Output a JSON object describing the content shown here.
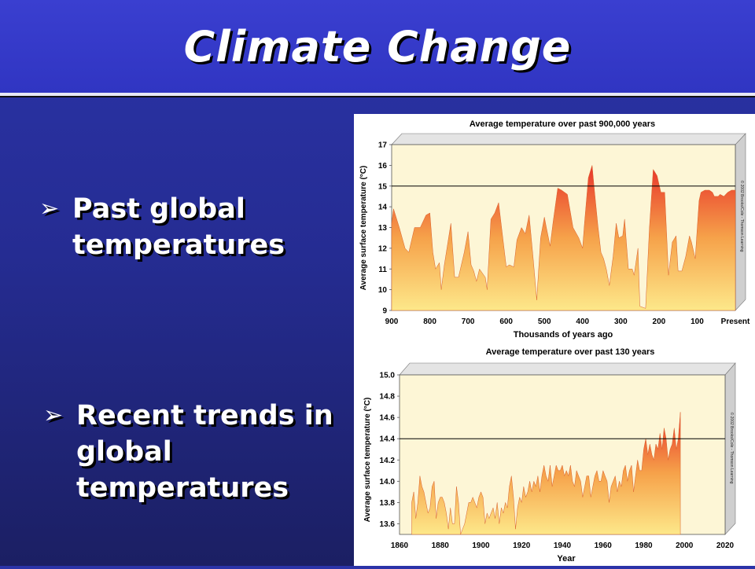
{
  "slide": {
    "title": "Climate Change",
    "bullets": [
      {
        "arrow": "➢",
        "text": "Past global temperatures"
      },
      {
        "arrow": "➢",
        "text": "Recent trends in global temperatures"
      }
    ],
    "colors": {
      "background": "#252c92",
      "fill_top": "#e8342b",
      "fill_bottom": "#fde88a",
      "plot_bg": "#fdf6d6"
    }
  },
  "chart_data": [
    {
      "type": "area",
      "title": "Average temperature over past 900,000 years",
      "xlabel": "Thousands of years ago",
      "ylabel": "Average surface temperature (°C)",
      "credit": "© 2002 Brooks/Cole - Thomson Learning",
      "x_ticks": [
        "900",
        "800",
        "700",
        "600",
        "500",
        "400",
        "300",
        "200",
        "100",
        "Present"
      ],
      "y_ticks": [
        "9",
        "10",
        "11",
        "12",
        "13",
        "14",
        "15",
        "16",
        "17"
      ],
      "xlim": [
        900,
        0
      ],
      "ylim": [
        9,
        17
      ],
      "reference_y": 15,
      "x": [
        900,
        895,
        880,
        865,
        855,
        840,
        825,
        810,
        800,
        792,
        785,
        775,
        770,
        762,
        745,
        735,
        725,
        710,
        700,
        692,
        685,
        678,
        670,
        655,
        650,
        640,
        630,
        620,
        600,
        592,
        580,
        572,
        560,
        550,
        540,
        530,
        520,
        510,
        500,
        495,
        485,
        477,
        465,
        455,
        440,
        425,
        410,
        400,
        395,
        385,
        375,
        370,
        360,
        352,
        345,
        338,
        330,
        320,
        312,
        305,
        295,
        290,
        280,
        270,
        265,
        255,
        250,
        235,
        225,
        215,
        205,
        195,
        185,
        175,
        165,
        155,
        150,
        140,
        130,
        120,
        115,
        105,
        95,
        90,
        80,
        75,
        68,
        60,
        55,
        45,
        40,
        30,
        20,
        10,
        0
      ],
      "y": [
        13.2,
        13.9,
        13.0,
        12.0,
        11.8,
        13.0,
        13.0,
        13.6,
        13.7,
        11.8,
        11.0,
        11.3,
        10.0,
        11.2,
        13.2,
        10.6,
        10.6,
        11.8,
        12.8,
        11.2,
        10.9,
        10.4,
        11.0,
        10.6,
        10.0,
        13.4,
        13.7,
        14.2,
        11.1,
        11.2,
        11.1,
        12.4,
        13.0,
        12.7,
        13.6,
        11.6,
        9.5,
        12.5,
        13.5,
        13.0,
        12.1,
        13.3,
        14.9,
        14.8,
        14.6,
        13.0,
        12.5,
        12.0,
        13.2,
        15.4,
        16.0,
        15.0,
        13.1,
        11.8,
        11.5,
        11.0,
        10.2,
        11.6,
        13.2,
        12.5,
        12.6,
        13.4,
        11.0,
        11.0,
        10.7,
        12.0,
        9.2,
        9.1,
        13.0,
        15.8,
        15.5,
        14.7,
        14.7,
        10.7,
        12.3,
        12.6,
        10.9,
        10.9,
        11.6,
        12.6,
        12.3,
        11.5,
        14.3,
        14.7,
        14.8,
        14.8,
        14.8,
        14.7,
        14.5,
        14.5,
        14.6,
        14.5,
        14.7,
        14.8,
        14.8
      ]
    },
    {
      "type": "area",
      "title": "Average temperature over past 130 years",
      "xlabel": "Year",
      "ylabel": "Average surface temperature (°C)",
      "credit": "© 2002 Brooks/Cole - Thomson Learning",
      "x_ticks": [
        "1860",
        "1880",
        "1900",
        "1920",
        "1940",
        "1960",
        "1980",
        "2000",
        "2020"
      ],
      "y_ticks": [
        "13.6",
        "13.8",
        "14.0",
        "14.2",
        "14.4",
        "14.6",
        "14.8",
        "15.0"
      ],
      "xlim": [
        1860,
        2020
      ],
      "ylim": [
        13.5,
        15.0
      ],
      "reference_y": 14.4,
      "x": [
        1866,
        1867,
        1868,
        1869,
        1870,
        1871,
        1872,
        1873,
        1874,
        1875,
        1876,
        1877,
        1878,
        1879,
        1880,
        1881,
        1882,
        1883,
        1884,
        1885,
        1886,
        1887,
        1888,
        1889,
        1890,
        1891,
        1892,
        1893,
        1894,
        1895,
        1896,
        1897,
        1898,
        1899,
        1900,
        1901,
        1902,
        1903,
        1904,
        1905,
        1906,
        1907,
        1908,
        1909,
        1910,
        1911,
        1912,
        1913,
        1914,
        1915,
        1916,
        1917,
        1918,
        1919,
        1920,
        1921,
        1922,
        1923,
        1924,
        1925,
        1926,
        1927,
        1928,
        1929,
        1930,
        1931,
        1932,
        1933,
        1934,
        1935,
        1936,
        1937,
        1938,
        1939,
        1940,
        1941,
        1942,
        1943,
        1944,
        1945,
        1946,
        1947,
        1948,
        1949,
        1950,
        1951,
        1952,
        1953,
        1954,
        1955,
        1956,
        1957,
        1958,
        1959,
        1960,
        1961,
        1962,
        1963,
        1964,
        1965,
        1966,
        1967,
        1968,
        1969,
        1970,
        1971,
        1972,
        1973,
        1974,
        1975,
        1976,
        1977,
        1978,
        1979,
        1980,
        1981,
        1982,
        1983,
        1984,
        1985,
        1986,
        1987,
        1988,
        1989,
        1990,
        1991,
        1992,
        1993,
        1994,
        1995,
        1996,
        1997,
        1998
      ],
      "y": [
        13.8,
        13.9,
        13.65,
        13.8,
        14.05,
        13.95,
        13.9,
        13.8,
        13.7,
        13.75,
        13.95,
        14.0,
        13.65,
        13.8,
        13.85,
        13.85,
        13.8,
        13.7,
        13.55,
        13.75,
        13.6,
        13.6,
        13.95,
        13.8,
        13.5,
        13.55,
        13.6,
        13.7,
        13.8,
        13.8,
        13.85,
        13.8,
        13.75,
        13.85,
        13.9,
        13.85,
        13.6,
        13.7,
        13.65,
        13.7,
        13.75,
        13.65,
        13.8,
        13.6,
        13.75,
        13.7,
        13.8,
        13.75,
        13.95,
        14.05,
        13.85,
        13.55,
        13.75,
        13.85,
        13.8,
        13.95,
        13.85,
        13.9,
        14.0,
        13.9,
        14.0,
        13.95,
        14.05,
        13.9,
        14.05,
        14.15,
        14.05,
        14.0,
        14.15,
        13.95,
        14.05,
        14.15,
        14.1,
        14.1,
        14.15,
        14.05,
        14.1,
        14.05,
        14.15,
        14.0,
        13.95,
        14.1,
        14.05,
        14.0,
        13.85,
        13.95,
        14.05,
        14.05,
        13.85,
        13.95,
        14.05,
        14.1,
        14.0,
        14.0,
        14.1,
        14.05,
        14.0,
        13.8,
        13.95,
        14.0,
        14.05,
        13.9,
        14.0,
        13.95,
        14.1,
        14.15,
        14.0,
        14.1,
        14.15,
        13.9,
        14.05,
        14.2,
        14.1,
        14.1,
        14.3,
        14.4,
        14.25,
        14.35,
        14.25,
        14.2,
        14.35,
        14.3,
        14.45,
        14.3,
        14.5,
        14.4,
        14.2,
        14.3,
        14.35,
        14.5,
        14.3,
        14.4,
        14.65
      ]
    }
  ]
}
